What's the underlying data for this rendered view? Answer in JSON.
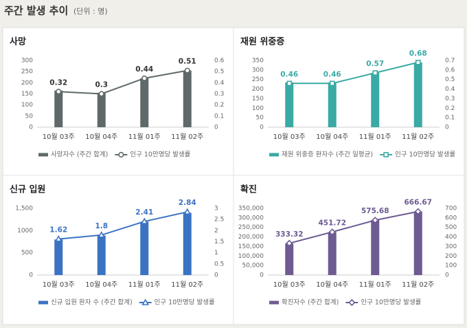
{
  "header": {
    "title": "주간 발생 추이",
    "unit": "(단위 : 명)"
  },
  "chart_data": [
    {
      "type": "combo",
      "title": "사망",
      "categories": [
        "10월 03주",
        "10월 04주",
        "11월 01주",
        "11월 02주"
      ],
      "series": [
        {
          "name": "사망자수 (주간 합계)",
          "color": "#5f6969",
          "values": [
            165,
            155,
            220,
            255
          ]
        },
        {
          "name": "인구 10만명당 발생률",
          "color": "#5f6969",
          "axis": "y2",
          "marker": "circle",
          "values": [
            0.32,
            0.3,
            0.44,
            0.51
          ]
        }
      ],
      "ylim": [
        0,
        300
      ],
      "yticks": [
        0,
        50,
        100,
        150,
        200,
        250,
        300
      ],
      "y2lim": [
        0,
        0.6
      ],
      "y2ticks": [
        0,
        0.1,
        0.2,
        0.3,
        0.4,
        0.5,
        0.6
      ],
      "grid": false
    },
    {
      "type": "combo",
      "title": "재원 위중증",
      "categories": [
        "10월 03주",
        "10월 04주",
        "11월 01주",
        "11월 02주"
      ],
      "series": [
        {
          "name": "재원 위중증 환자수 (주간 일평균)",
          "color": "#3aaaa5",
          "values": [
            235,
            235,
            285,
            340
          ]
        },
        {
          "name": "인구 10만명당 발생률",
          "color": "#3aaaa5",
          "axis": "y2",
          "marker": "square",
          "values": [
            0.46,
            0.46,
            0.57,
            0.68
          ]
        }
      ],
      "ylim": [
        0,
        350
      ],
      "yticks": [
        0,
        50,
        100,
        150,
        200,
        250,
        300,
        350
      ],
      "y2lim": [
        0,
        0.7
      ],
      "y2ticks": [
        0,
        0.1,
        0.2,
        0.3,
        0.4,
        0.5,
        0.6,
        0.7
      ],
      "grid": false
    },
    {
      "type": "combo",
      "title": "신규 입원",
      "categories": [
        "10월 03주",
        "10월 04주",
        "11월 01주",
        "11월 02주"
      ],
      "series": [
        {
          "name": "신규 입원 환자 수 (주간 합계)",
          "color": "#3b73c2",
          "values": [
            800,
            890,
            1200,
            1400
          ]
        },
        {
          "name": "인구 10만명당 발생률",
          "color": "#3b73c2",
          "axis": "y2",
          "marker": "triangle",
          "values": [
            1.62,
            1.8,
            2.41,
            2.84
          ]
        }
      ],
      "ylim": [
        0,
        1500
      ],
      "yticks": [
        0,
        500,
        1000,
        {
          "value": 1500,
          "label": "1,500"
        }
      ],
      "y2lim": [
        0,
        3
      ],
      "y2ticks": [
        0,
        0.5,
        1,
        1.5,
        2,
        2.5,
        3
      ],
      "grid": false
    },
    {
      "type": "combo",
      "title": "확진",
      "categories": [
        "10월 03주",
        "10월 04주",
        "11월 01주",
        "11월 02주"
      ],
      "series": [
        {
          "name": "확진자수 (주간 합계)",
          "color": "#6d5b92",
          "values": [
            165000,
            225000,
            288000,
            333000
          ]
        },
        {
          "name": "인구 10만명당 발생률",
          "color": "#6d5b92",
          "axis": "y2",
          "marker": "diamond",
          "values": [
            333.32,
            451.72,
            575.68,
            666.67
          ]
        }
      ],
      "ylim": [
        0,
        350000
      ],
      "yticks": [
        0,
        {
          "value": 50000,
          "label": "50,000"
        },
        {
          "value": 100000,
          "label": "100,000"
        },
        {
          "value": 150000,
          "label": "150,000"
        },
        {
          "value": 200000,
          "label": "200,000"
        },
        {
          "value": 250000,
          "label": "250,000"
        },
        {
          "value": 300000,
          "label": "300,000"
        },
        {
          "value": 350000,
          "label": "350,000"
        }
      ],
      "y2lim": [
        0,
        700
      ],
      "y2ticks": [
        0,
        100,
        200,
        300,
        400,
        500,
        600,
        700
      ],
      "grid": false
    }
  ]
}
